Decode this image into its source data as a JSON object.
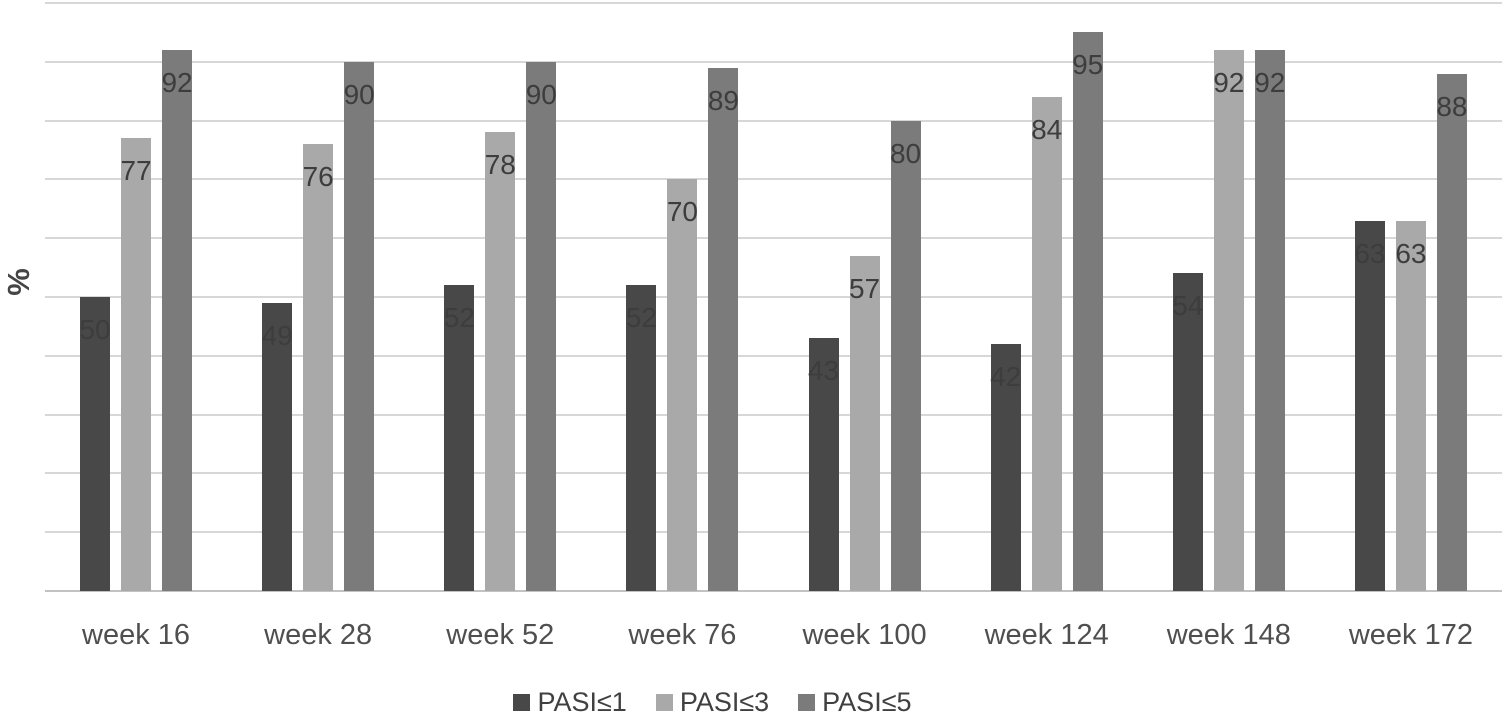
{
  "chart_data": {
    "type": "bar",
    "title": "",
    "xlabel": "",
    "ylabel": "%",
    "ylim": [
      0,
      100
    ],
    "gridline_step": 10,
    "grid": "horizontal",
    "y_tick_labels_visible": false,
    "data_labels": "inside-end",
    "legend_position": "bottom",
    "categories": [
      "week 16",
      "week 28",
      "week 52",
      "week 76",
      "week 100",
      "week 124",
      "week 148",
      "week 172"
    ],
    "series": [
      {
        "name": "PASI≤1",
        "color": "#484848",
        "values": [
          50,
          49,
          52,
          52,
          43,
          42,
          54,
          63
        ]
      },
      {
        "name": "PASI≤3",
        "color": "#a9a9a9",
        "values": [
          77,
          76,
          78,
          70,
          57,
          84,
          92,
          63
        ]
      },
      {
        "name": "PASI≤5",
        "color": "#7b7b7b",
        "values": [
          92,
          90,
          90,
          89,
          80,
          95,
          92,
          88
        ]
      }
    ]
  },
  "colors": {
    "gridline": "#d7d7d7",
    "axis_line": "#c2c2c2",
    "value_label": "#3d3d3d",
    "axis_label": "#4f4f4f",
    "legend_label": "#404040",
    "background": "#ffffff"
  }
}
